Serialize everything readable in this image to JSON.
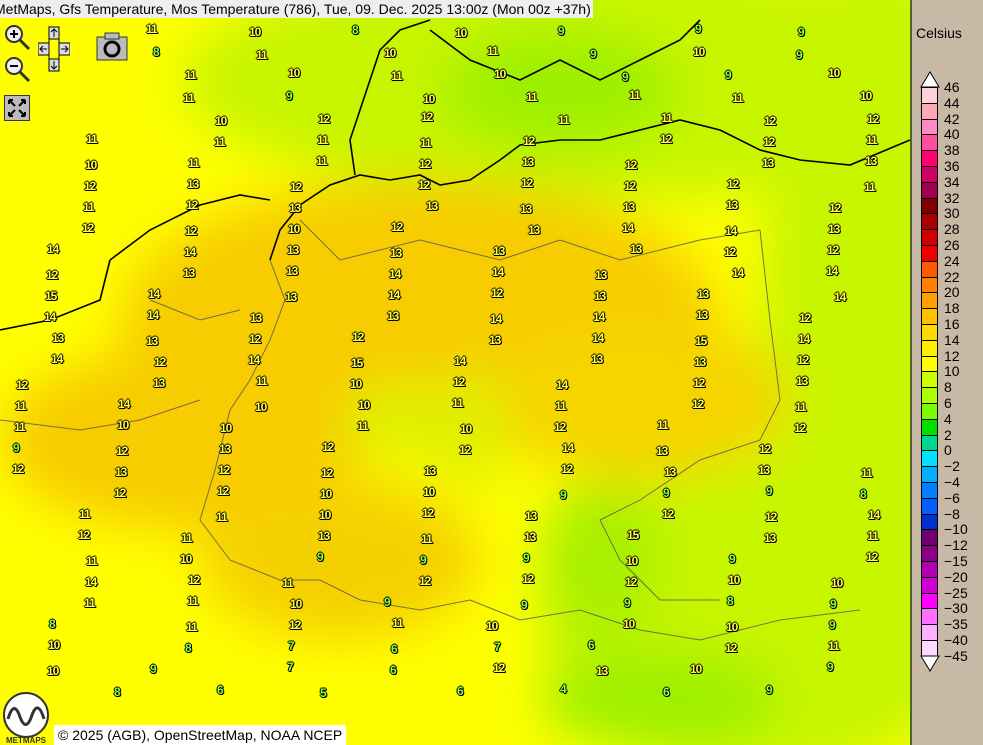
{
  "title": "MetMaps, Gfs Temperature, Mos Temperature (786), Tue, 09. Dec. 2025 13:00z (Mon 00z +37h)",
  "toolbar": [
    {
      "name": "zoom-in",
      "icon": "magnifier-plus-icon"
    },
    {
      "name": "zoom-out",
      "icon": "magnifier-minus-icon"
    },
    {
      "name": "pan",
      "icon": "pan-arrows-icon"
    },
    {
      "name": "snapshot",
      "icon": "camera-icon"
    },
    {
      "name": "fullscreen",
      "icon": "expand-icon"
    }
  ],
  "copyright": "© 2025 (AGB), OpenStreetMap, NOAA NCEP",
  "logo_text": "METMAPS",
  "legend": {
    "unit": "Celsius",
    "labels": [
      "46",
      "44",
      "42",
      "40",
      "38",
      "36",
      "34",
      "32",
      "30",
      "28",
      "26",
      "24",
      "22",
      "20",
      "18",
      "16",
      "14",
      "12",
      "10",
      "8",
      "6",
      "4",
      "2",
      "0",
      "−2",
      "−4",
      "−6",
      "−8",
      "−10",
      "−12",
      "−15",
      "−20",
      "−25",
      "−30",
      "−35",
      "−40",
      "−45"
    ],
    "colors": [
      "#ffd0d8",
      "#ffa8b0",
      "#ff88c8",
      "#ff50a0",
      "#ff0070",
      "#d0006a",
      "#a00050",
      "#800000",
      "#a80000",
      "#d00000",
      "#ee0000",
      "#ff5a00",
      "#ff8000",
      "#ffa000",
      "#ffc000",
      "#ffd800",
      "#ffee00",
      "#ffff00",
      "#ccff00",
      "#aaff00",
      "#7cfc00",
      "#00e000",
      "#00d890",
      "#00e0ff",
      "#00b0ff",
      "#0080ff",
      "#0060ff",
      "#0030d0",
      "#700070",
      "#880088",
      "#b000b0",
      "#d000d0",
      "#ff00ff",
      "#ff70ff",
      "#ffb0ff",
      "#ffd8ff"
    ]
  },
  "stations": [
    "11",
    "10",
    "8",
    "10",
    "9",
    "9",
    "9",
    "8",
    "11",
    "10",
    "11",
    "9",
    "10",
    "9",
    "11",
    "10",
    "11",
    "10",
    "9",
    "9",
    "10",
    "11",
    "9",
    "10",
    "11",
    "11",
    "11",
    "10",
    "10",
    "12",
    "12",
    "11",
    "11",
    "12",
    "12",
    "11",
    "11",
    "11",
    "11",
    "12",
    "12",
    "12",
    "11",
    "10",
    "11",
    "11",
    "12",
    "13",
    "12",
    "13",
    "13",
    "12",
    "13",
    "12",
    "12",
    "12",
    "12",
    "12",
    "11",
    "11",
    "12",
    "13",
    "13",
    "13",
    "13",
    "13",
    "12",
    "12",
    "12",
    "10",
    "12",
    "13",
    "14",
    "14",
    "13",
    "14",
    "14",
    "13",
    "13",
    "13",
    "13",
    "12",
    "12",
    "12",
    "13",
    "13",
    "14",
    "14",
    "13",
    "14",
    "14",
    "15",
    "14",
    "13",
    "14",
    "12",
    "13",
    "13",
    "14",
    "14",
    "14",
    "13",
    "13",
    "14",
    "14",
    "13",
    "12",
    "13",
    "13",
    "12",
    "12",
    "13",
    "14",
    "15",
    "14",
    "14",
    "12",
    "14",
    "15",
    "14",
    "13",
    "13",
    "12",
    "12",
    "13",
    "11",
    "10",
    "12",
    "14",
    "12",
    "13",
    "11",
    "14",
    "10",
    "10",
    "11",
    "11",
    "12",
    "11",
    "11",
    "10",
    "10",
    "11",
    "10",
    "12",
    "11",
    "12",
    "9",
    "12",
    "13",
    "12",
    "12",
    "14",
    "13",
    "12",
    "12",
    "13",
    "12",
    "12",
    "13",
    "12",
    "13",
    "13",
    "11",
    "12",
    "12",
    "10",
    "10",
    "9",
    "9",
    "9",
    "8",
    "11",
    "11",
    "10",
    "12",
    "13",
    "12",
    "12",
    "14",
    "12",
    "11",
    "13",
    "11",
    "13",
    "15",
    "13",
    "11",
    "11",
    "10",
    "9",
    "9",
    "9",
    "10",
    "9",
    "12",
    "14",
    "12",
    "11",
    "12",
    "12",
    "12",
    "10",
    "10",
    "11",
    "11",
    "10",
    "9",
    "9",
    "9",
    "8",
    "9",
    "8",
    "11",
    "12",
    "11",
    "10",
    "10",
    "10",
    "9",
    "10",
    "8",
    "7",
    "6",
    "7",
    "6",
    "12",
    "11",
    "10",
    "9",
    "7",
    "6",
    "12",
    "13",
    "10",
    "9",
    "8",
    "6",
    "5",
    "6",
    "4",
    "6",
    "9"
  ],
  "colors": {
    "warm": "#f5c800",
    "mild": "#ffff00",
    "cool": "#ccf500",
    "green": "#8cf000",
    "label_warm": "#ffff40",
    "label_cool": "#8cff40"
  }
}
